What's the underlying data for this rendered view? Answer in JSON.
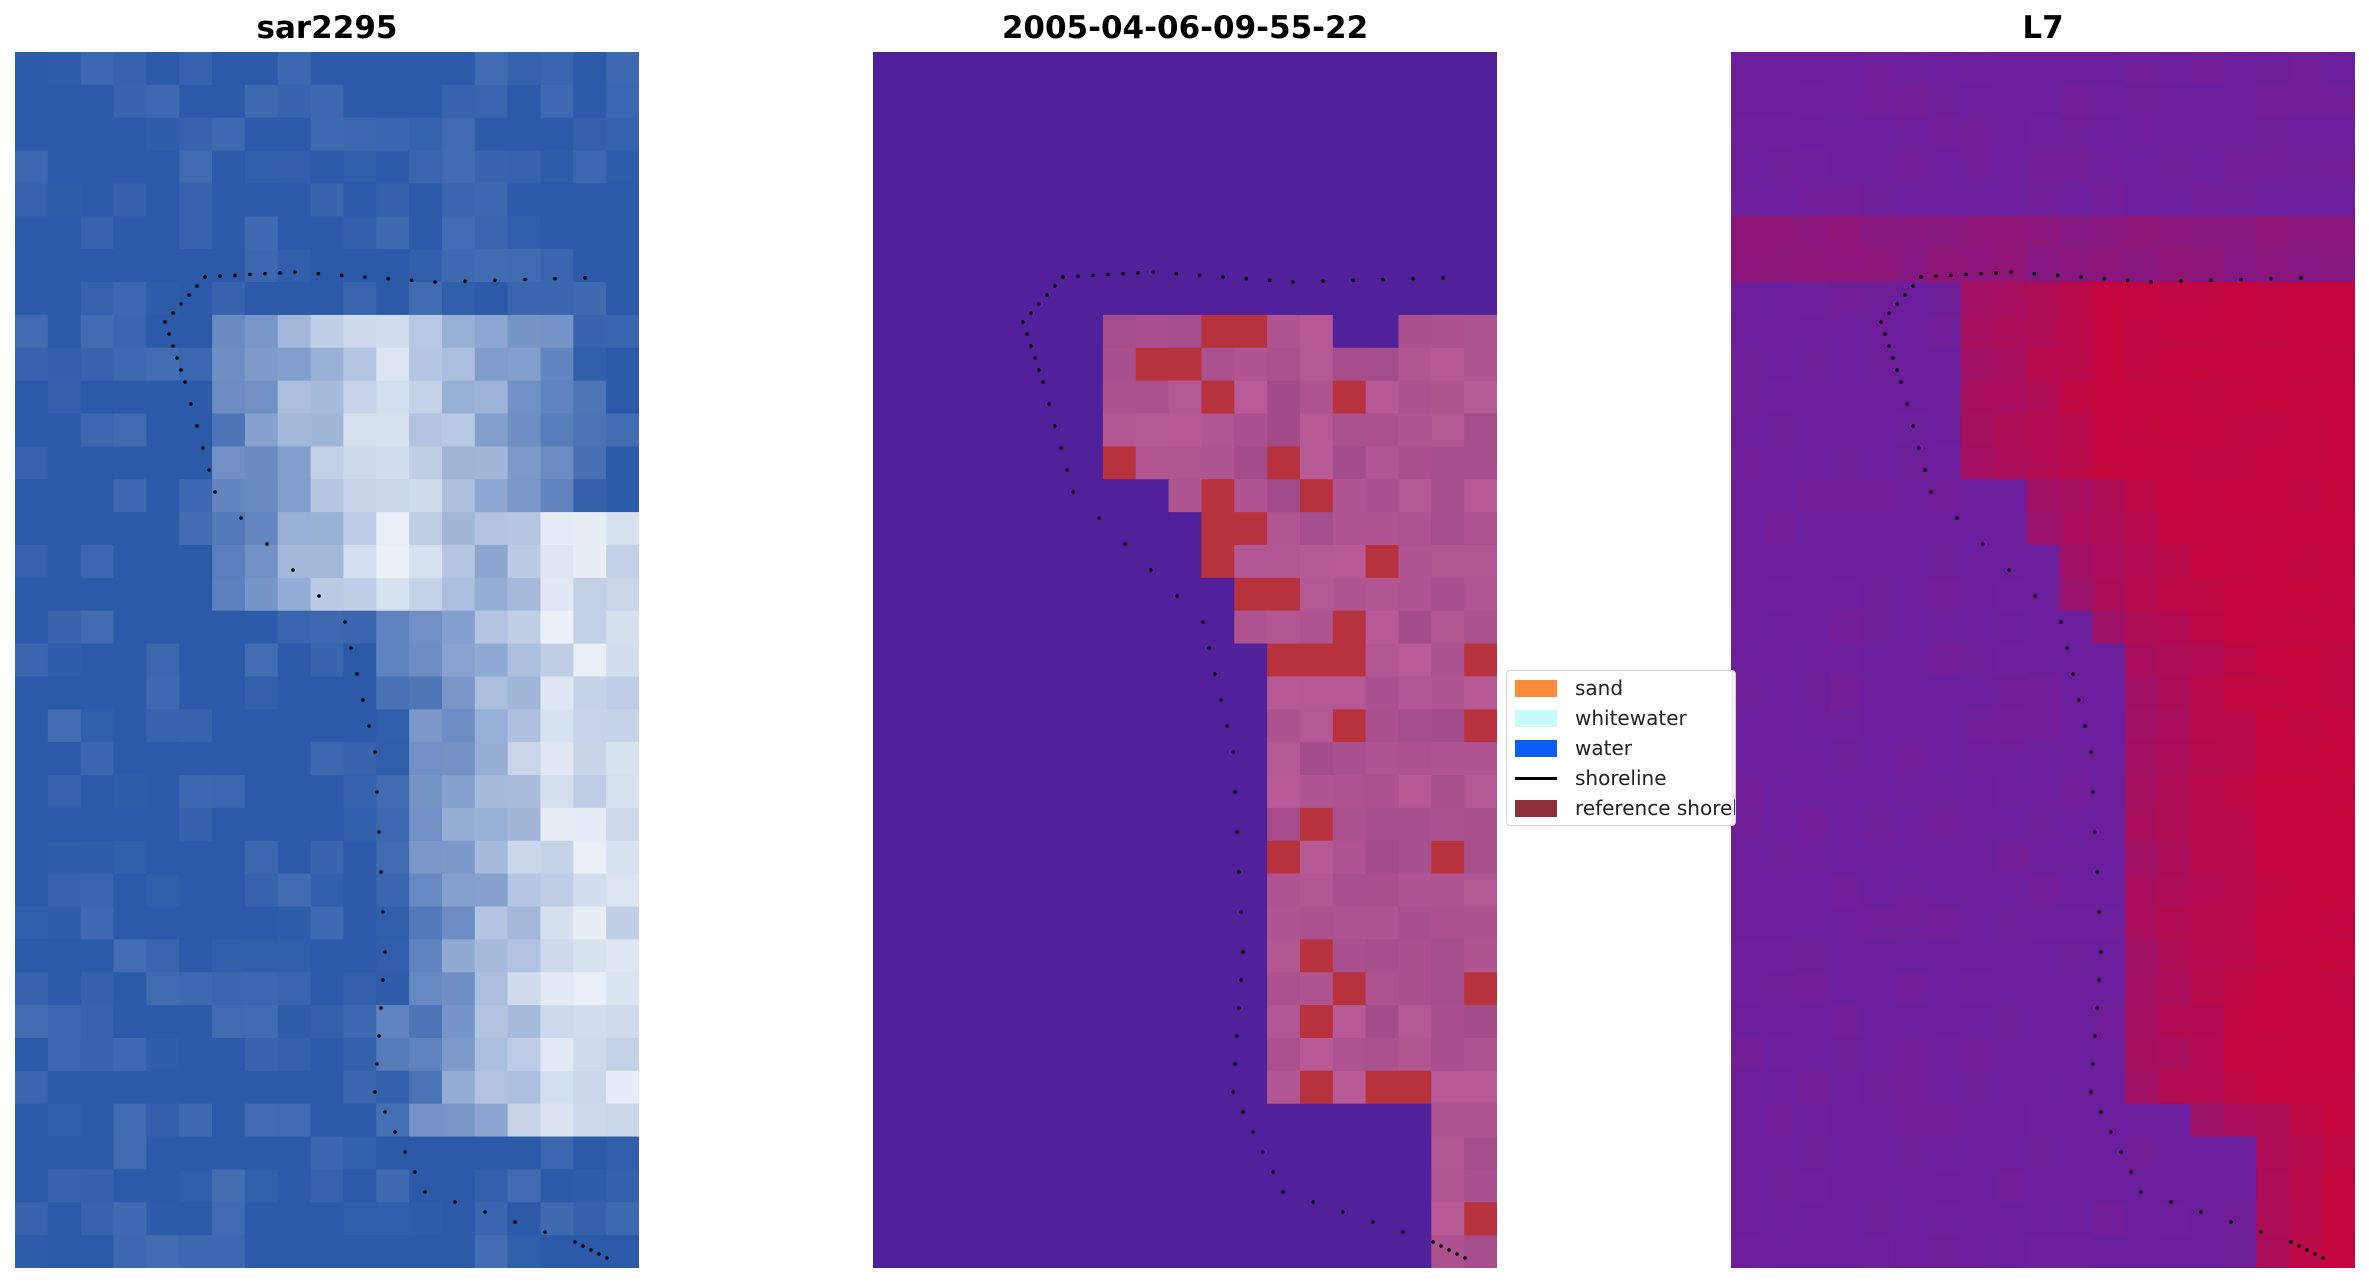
{
  "panels": [
    {
      "title": "sar2295"
    },
    {
      "title": "2005-04-06-09-55-22"
    },
    {
      "title": "L7"
    }
  ],
  "legend": {
    "items": [
      {
        "label": "sand",
        "color": "#ff8c3a",
        "kind": "patch"
      },
      {
        "label": "whitewater",
        "color": "#c8fcfa",
        "kind": "patch"
      },
      {
        "label": "water",
        "color": "#0a5cf2",
        "kind": "patch"
      },
      {
        "label": "shoreline",
        "color": "#000000",
        "kind": "line"
      },
      {
        "label": "reference shoreline",
        "color": "#8e3035",
        "kind": "patch"
      }
    ]
  },
  "colors": {
    "sar_water": "#2a5aa8",
    "sar_white": "#f4f7fb",
    "class_background": "#51219b",
    "class_patch": "#b85b96",
    "class_reference": "#b8323e",
    "index_low": "#6b1e9c",
    "index_high": "#c4063c"
  }
}
